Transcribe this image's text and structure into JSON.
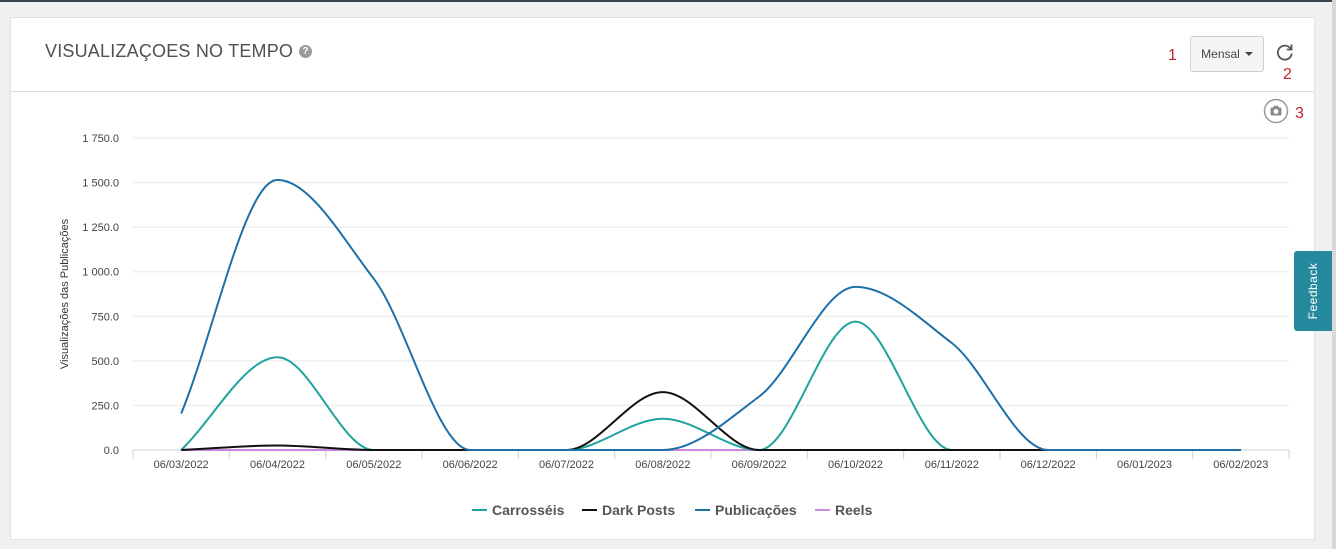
{
  "panel": {
    "title": "VISUALIZAÇOES NO TEMPO",
    "help_icon": "question-circle-icon",
    "period_dropdown_value": "Mensal",
    "refresh_icon": "refresh-icon",
    "camera_icon": "camera-icon"
  },
  "annotations": [
    "1",
    "2",
    "3"
  ],
  "feedback_label": "Feedback",
  "colors": {
    "carrosseis": "#20a39e",
    "dark_posts": "#111111",
    "publicacoes": "#1f6fa8",
    "reels": "#cc88dd",
    "feedback_bg": "#268a9e",
    "annotation": "#c0262b"
  },
  "chart_data": {
    "type": "line",
    "title": "",
    "xlabel": "",
    "ylabel": "Visualizações das Publicações",
    "categories": [
      "06/03/2022",
      "06/04/2022",
      "06/05/2022",
      "06/06/2022",
      "06/07/2022",
      "06/08/2022",
      "06/09/2022",
      "06/10/2022",
      "06/11/2022",
      "06/12/2022",
      "06/01/2023",
      "06/02/2023"
    ],
    "y_ticks": [
      "0.0",
      "250.0",
      "500.0",
      "750.0",
      "1 000.0",
      "1 250.0",
      "1 500.0",
      "1 750.0"
    ],
    "ylim": [
      0,
      1750
    ],
    "grid": true,
    "legend_position": "bottom",
    "series": [
      {
        "name": "Carrosséis",
        "values": [
          0,
          520,
          0,
          0,
          0,
          175,
          0,
          720,
          0,
          0,
          0,
          0
        ]
      },
      {
        "name": "Dark Posts",
        "values": [
          0,
          25,
          0,
          0,
          0,
          325,
          0,
          0,
          0,
          0,
          0,
          0
        ]
      },
      {
        "name": "Publicações",
        "values": [
          205,
          1515,
          960,
          0,
          0,
          0,
          300,
          915,
          600,
          0,
          0,
          0
        ]
      },
      {
        "name": "Reels",
        "values": [
          0,
          0,
          0,
          0,
          0,
          0,
          0,
          0,
          0,
          0,
          0,
          0
        ]
      }
    ]
  }
}
